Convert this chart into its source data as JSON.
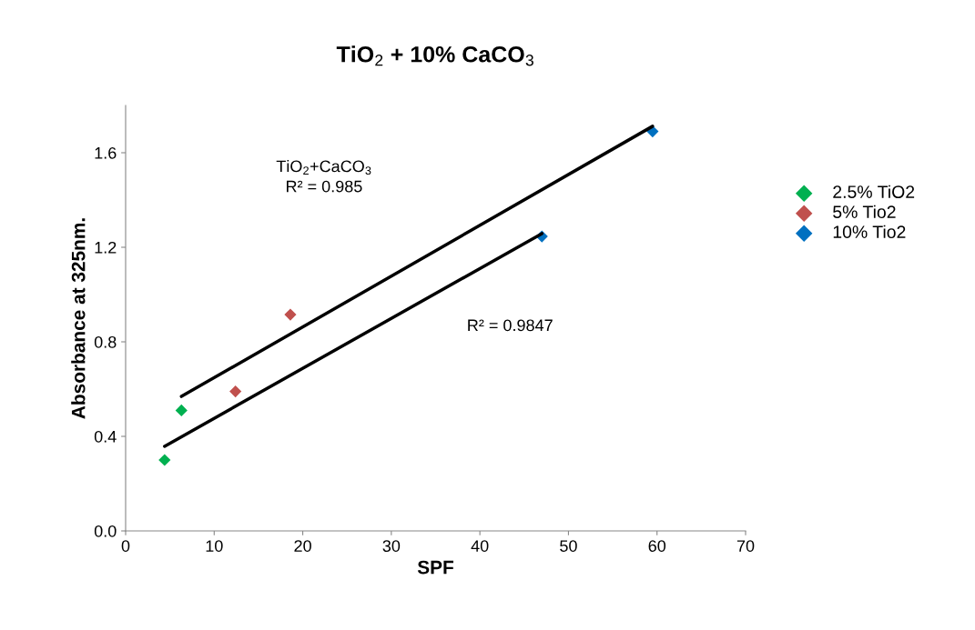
{
  "chart_data": {
    "type": "scatter",
    "title": "TiO$_{2}$ + 10% CaCO$_{3}$",
    "xlabel": "SPF",
    "ylabel": "Absorbance at 325nm.",
    "xlim": [
      0,
      70
    ],
    "xticks": [
      0,
      10,
      20,
      30,
      40,
      50,
      60,
      70
    ],
    "ylim": [
      0,
      1.8
    ],
    "yticks": [
      {
        "value": 0,
        "label": "0.0"
      },
      0.4,
      0.8,
      1.2,
      1.6
    ],
    "marker": "diamond",
    "grid": false,
    "legend": "right",
    "series": [
      {
        "name": "2.5% TiO2",
        "color": "#00b050",
        "x": [
          4.4,
          6.3
        ],
        "values": [
          0.3,
          0.51
        ]
      },
      {
        "name": "5% Tio2",
        "color": "#c0504d",
        "x": [
          12.4,
          18.6
        ],
        "values": [
          0.59,
          0.915
        ]
      },
      {
        "name": "10% Tio2",
        "color": "#0070c0",
        "x": [
          47.0,
          59.5
        ],
        "values": [
          1.246,
          1.69
        ]
      },
      {
        "type": "line",
        "color": "#000000",
        "marker": "none",
        "x": [
          4.4,
          47.0
        ],
        "values": [
          0.358,
          1.258
        ]
      },
      {
        "type": "line",
        "color": "#000000",
        "marker": "none",
        "x": [
          6.3,
          59.5
        ],
        "values": [
          0.569,
          1.712
        ]
      }
    ],
    "annotations": [
      "TiO$_{2}$+CaCO$_{3}$\nR² = 0.985",
      "R² = 0.9847"
    ]
  }
}
